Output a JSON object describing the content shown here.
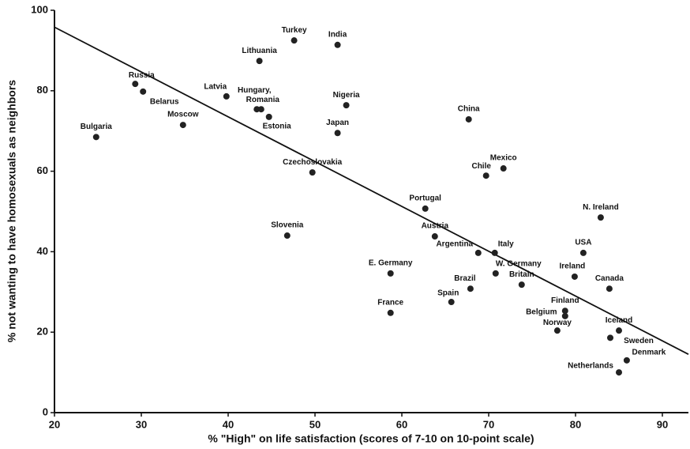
{
  "chart_data": {
    "type": "scatter",
    "x_label": "% \"High\" on life satisfaction (scores of 7-10 on 10-point scale)",
    "y_label": "% not wanting to have homosexuals as neighbors",
    "labels": [
      "Bulgaria",
      "Russia",
      "Belarus",
      "Moscow",
      "Latvia",
      "Lithuania",
      "Hungary,",
      "Romania",
      "Estonia",
      "Turkey",
      "India",
      "Nigeria",
      "Japan",
      "Czechoslovakia",
      "Slovenia",
      "E. Germany",
      "France",
      "Portugal",
      "Austria",
      "China",
      "Chile",
      "Mexico",
      "Argentina",
      "Italy",
      "W. Germany",
      "Brazil",
      "Britain",
      "Spain",
      "N. Ireland",
      "USA",
      "Ireland",
      "Canada",
      "Finland",
      "Belgium",
      "Norway",
      "Iceland",
      "Sweden",
      "Denmark",
      "Netherlands"
    ],
    "x": [
      24.8,
      29.3,
      30.2,
      34.8,
      39.8,
      43.6,
      43.3,
      43.8,
      44.7,
      47.6,
      52.6,
      53.6,
      52.6,
      49.7,
      46.8,
      58.7,
      58.7,
      62.7,
      63.8,
      67.7,
      69.7,
      71.7,
      68.8,
      70.7,
      70.8,
      67.9,
      73.8,
      65.7,
      82.9,
      80.9,
      79.9,
      83.9,
      78.8,
      78.8,
      77.9,
      85.0,
      84.0,
      85.9,
      85.0
    ],
    "values": [
      68.5,
      81.7,
      79.8,
      71.5,
      78.6,
      87.4,
      75.4,
      75.4,
      73.5,
      92.5,
      91.4,
      76.4,
      69.5,
      59.7,
      44.0,
      34.6,
      24.8,
      50.7,
      43.8,
      72.9,
      58.9,
      60.7,
      39.7,
      39.7,
      34.6,
      30.8,
      31.8,
      27.5,
      48.5,
      39.7,
      33.8,
      30.8,
      25.3,
      24.0,
      20.4,
      20.4,
      18.6,
      13.0,
      10.0
    ],
    "color": "#222222",
    "trendline": {
      "x": [
        20,
        93
      ],
      "values": [
        95.8,
        14.5
      ]
    },
    "xlim": [
      20,
      93
    ],
    "ylim": [
      0,
      100
    ],
    "xticks": [
      20,
      30,
      40,
      50,
      60,
      70,
      80,
      90
    ],
    "yticks": [
      0,
      20,
      40,
      60,
      80,
      100
    ]
  }
}
